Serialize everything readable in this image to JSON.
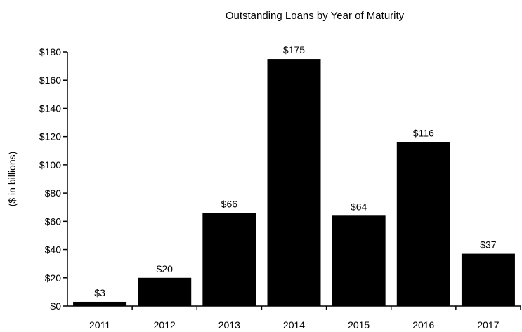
{
  "chart_data": {
    "type": "bar",
    "title": "Outstanding Loans by Year of Maturity",
    "xlabel": "",
    "ylabel": "($ in billions)",
    "categories": [
      "2011",
      "2012",
      "2013",
      "2014",
      "2015",
      "2016",
      "2017"
    ],
    "values": [
      3,
      20,
      66,
      175,
      64,
      116,
      37
    ],
    "data_labels": [
      "$3",
      "$20",
      "$66",
      "$175",
      "$64",
      "$116",
      "$37"
    ],
    "ylim": [
      0,
      180
    ],
    "yticks": [
      0,
      20,
      40,
      60,
      80,
      100,
      120,
      140,
      160,
      180
    ],
    "ytick_labels": [
      "$0",
      "$20",
      "$40",
      "$60",
      "$80",
      "$100",
      "$120",
      "$140",
      "$160",
      "$180"
    ],
    "grid": false,
    "legend": "none",
    "bar_color": "#000000",
    "axis_color": "#000000",
    "text_color": "#000000"
  }
}
